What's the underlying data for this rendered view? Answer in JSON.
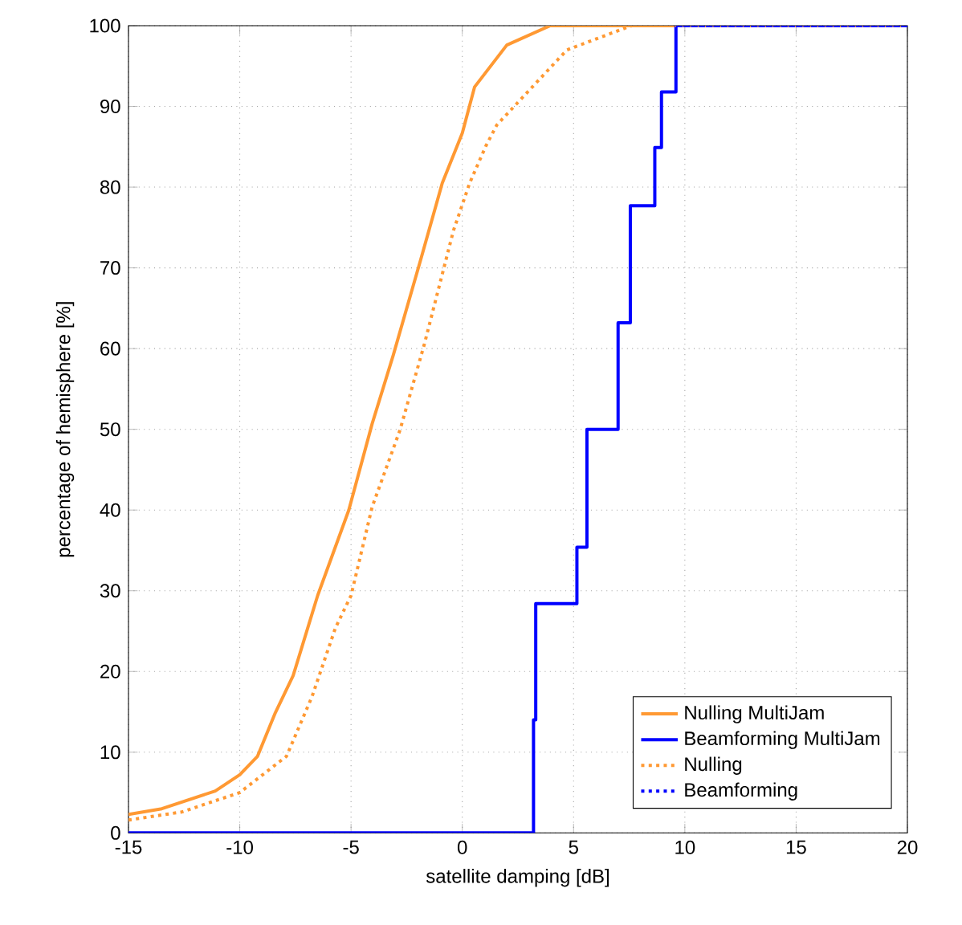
{
  "chart_data": {
    "type": "line",
    "xlabel": "satellite damping [dB]",
    "ylabel": "percentage of hemisphere [%]",
    "xlim": [
      -15,
      20
    ],
    "ylim": [
      0,
      100
    ],
    "xticks": [
      -15,
      -10,
      -5,
      0,
      5,
      10,
      15,
      20
    ],
    "yticks": [
      0,
      10,
      20,
      30,
      40,
      50,
      60,
      70,
      80,
      90,
      100
    ],
    "grid": true,
    "legend": "bottom right",
    "marker": "none",
    "series": [
      {
        "name": "Nulling MultiJam",
        "color": "#ff9933",
        "line_style": "solid",
        "x": [
          -15,
          -13.5,
          -11.1,
          -10,
          -9.2,
          -8.4,
          -7.6,
          -6.5,
          -5.1,
          -4.05,
          -3.1,
          -1.85,
          -0.9,
          0,
          0.55,
          2,
          3.95,
          20
        ],
        "values": [
          2.3,
          3,
          5.2,
          7.2,
          9.5,
          14.9,
          19.5,
          29.4,
          40,
          50.7,
          59.2,
          71.2,
          80.5,
          86.7,
          92.4,
          97.6,
          100,
          100
        ]
      },
      {
        "name": "Beamforming MultiJam",
        "color": "#0000ff",
        "line_style": "solid",
        "type": "step",
        "x": [
          -15,
          3.2,
          3.3,
          5.15,
          5.6,
          7.0,
          7.55,
          8.65,
          8.95,
          9.6,
          20
        ],
        "values": [
          0,
          14,
          28.4,
          35.4,
          50,
          63.2,
          77.7,
          84.9,
          91.8,
          100,
          100
        ]
      },
      {
        "name": "Nulling",
        "color": "#ff9933",
        "line_style": "dotted",
        "x": [
          -15,
          -12.6,
          -10,
          -7.9,
          -6.75,
          -5.7,
          -5,
          -4.05,
          -2.8,
          -1.7,
          -0.4,
          0.33,
          1.06,
          1.55,
          2.5,
          4.7,
          7.6,
          20
        ],
        "values": [
          1.6,
          2.6,
          5,
          9.5,
          16.9,
          25.4,
          29.4,
          40.4,
          49.9,
          60.6,
          74.6,
          80.5,
          85.1,
          87.7,
          90.5,
          97,
          100,
          100
        ]
      },
      {
        "name": "Beamforming",
        "color": "#0000ff",
        "line_style": "dotted",
        "type": "step",
        "x": [
          9.6,
          20
        ],
        "values": [
          100,
          100
        ]
      }
    ]
  }
}
